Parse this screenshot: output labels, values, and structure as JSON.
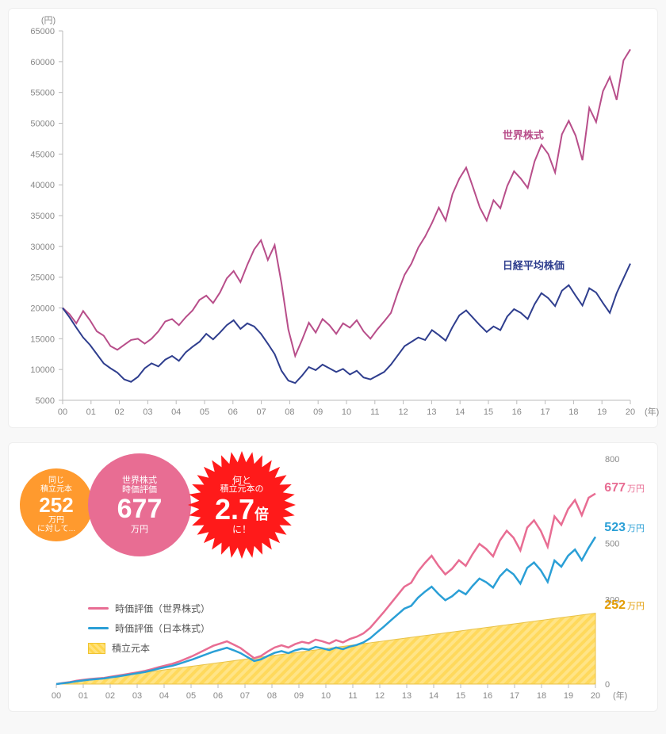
{
  "top_chart": {
    "type": "line",
    "y_unit": "(円)",
    "x_unit": "(年)",
    "ylim": [
      5000,
      65000
    ],
    "ytick_step": 5000,
    "x_ticks": [
      "00",
      "01",
      "02",
      "03",
      "04",
      "05",
      "06",
      "07",
      "08",
      "09",
      "10",
      "11",
      "12",
      "13",
      "14",
      "15",
      "16",
      "17",
      "18",
      "19",
      "20"
    ],
    "background_color": "#ffffff",
    "axis_color": "#bbbbbb",
    "tick_font_color": "#888888",
    "tick_fontsize": 11,
    "series": [
      {
        "name": "世界株式",
        "label": "世界株式",
        "color": "#b84e8a",
        "line_width": 2.2,
        "label_pos_year_index": 15.5,
        "label_pos_y": 47500,
        "values": [
          20000,
          19000,
          17500,
          19500,
          18000,
          16200,
          15500,
          13800,
          13200,
          14000,
          14800,
          15000,
          14200,
          15000,
          16200,
          17800,
          18200,
          17200,
          18500,
          19600,
          21300,
          22000,
          20800,
          22500,
          24800,
          26000,
          24200,
          27000,
          29500,
          31000,
          27800,
          30200,
          24000,
          16500,
          12200,
          14800,
          17600,
          16000,
          18200,
          17200,
          15800,
          17500,
          16800,
          18000,
          16200,
          15000,
          16500,
          17800,
          19200,
          22500,
          25400,
          27200,
          29800,
          31600,
          33800,
          36300,
          34200,
          38500,
          41000,
          42800,
          39600,
          36300,
          34200,
          37500,
          36200,
          39800,
          42200,
          41000,
          39500,
          43800,
          46500,
          45000,
          42000,
          48200,
          50400,
          48000,
          44000,
          52500,
          50200,
          55200,
          57500,
          53800,
          60200,
          62000
        ]
      },
      {
        "name": "日経平均株価",
        "label": "日経平均株価",
        "color": "#2f3e8e",
        "line_width": 2.2,
        "label_pos_year_index": 15.5,
        "label_pos_y": 26300,
        "values": [
          20000,
          18500,
          16800,
          15200,
          14000,
          12500,
          11000,
          10200,
          9500,
          8400,
          8000,
          8800,
          10200,
          11000,
          10500,
          11600,
          12200,
          11400,
          12800,
          13700,
          14500,
          15800,
          14900,
          16000,
          17200,
          18000,
          16600,
          17500,
          17000,
          15800,
          14200,
          12500,
          9800,
          8200,
          7800,
          9000,
          10400,
          9900,
          10800,
          10200,
          9600,
          10100,
          9200,
          9800,
          8700,
          8400,
          9000,
          9600,
          10800,
          12300,
          13800,
          14500,
          15200,
          14800,
          16400,
          15600,
          14700,
          16900,
          18800,
          19600,
          18400,
          17200,
          16100,
          17000,
          16400,
          18600,
          19800,
          19200,
          18200,
          20600,
          22400,
          21600,
          20300,
          22800,
          23700,
          22000,
          20400,
          23200,
          22500,
          20800,
          19200,
          22400,
          24800,
          27200
        ]
      }
    ]
  },
  "bottom_chart": {
    "type": "line_area",
    "x_unit": "(年)",
    "ylim": [
      0,
      800
    ],
    "yticks": [
      0,
      300,
      500,
      800
    ],
    "x_ticks": [
      "00",
      "01",
      "02",
      "03",
      "04",
      "05",
      "06",
      "07",
      "08",
      "09",
      "10",
      "11",
      "12",
      "13",
      "14",
      "15",
      "16",
      "17",
      "18",
      "19",
      "20"
    ],
    "axis_color": "#bbbbbb",
    "tick_font_color": "#888888",
    "area": {
      "name": "積立元本",
      "fill_color_a": "#ffe17a",
      "fill_color_b": "#ffd54a",
      "opacity": 0.9,
      "end_value": 252,
      "end_color": "#e29b00",
      "values": [
        0,
        3,
        6,
        9,
        12,
        15,
        18,
        21,
        24,
        27,
        30,
        33,
        36,
        39,
        42,
        45,
        48,
        51,
        54,
        57,
        60,
        63,
        66,
        69,
        72,
        75,
        78,
        81,
        84,
        87,
        90,
        93,
        96,
        99,
        102,
        105,
        108,
        111,
        114,
        117,
        120,
        123,
        126,
        129,
        132,
        135,
        138,
        141,
        144,
        147,
        150,
        153,
        156,
        159,
        162,
        165,
        168,
        171,
        174,
        177,
        180,
        183,
        186,
        189,
        192,
        195,
        198,
        201,
        204,
        207,
        210,
        213,
        216,
        219,
        222,
        225,
        228,
        231,
        234,
        237,
        240,
        243,
        246,
        249,
        252
      ]
    },
    "series": [
      {
        "name": "時価評価（世界株式）",
        "color": "#e86d93",
        "line_width": 2.2,
        "end_value": 677,
        "values": [
          0,
          4,
          7,
          12,
          15,
          18,
          20,
          22,
          26,
          30,
          34,
          38,
          42,
          47,
          53,
          60,
          66,
          72,
          80,
          90,
          100,
          112,
          124,
          136,
          144,
          152,
          140,
          128,
          110,
          92,
          100,
          116,
          130,
          138,
          130,
          142,
          150,
          145,
          158,
          152,
          144,
          156,
          148,
          160,
          168,
          180,
          200,
          228,
          256,
          286,
          316,
          346,
          360,
          400,
          430,
          456,
          420,
          390,
          410,
          440,
          420,
          462,
          498,
          480,
          454,
          510,
          545,
          520,
          475,
          556,
          582,
          544,
          488,
          596,
          566,
          622,
          654,
          600,
          662,
          677
        ]
      },
      {
        "name": "時価評価（日本株式）",
        "color": "#2a9fd6",
        "line_width": 2.2,
        "end_value": 523,
        "values": [
          0,
          3,
          6,
          10,
          13,
          16,
          18,
          20,
          24,
          27,
          31,
          35,
          39,
          43,
          49,
          55,
          60,
          65,
          72,
          80,
          88,
          97,
          106,
          115,
          122,
          129,
          120,
          110,
          96,
          82,
          88,
          100,
          111,
          117,
          110,
          120,
          126,
          122,
          132,
          127,
          121,
          130,
          124,
          133,
          139,
          148,
          163,
          184,
          204,
          226,
          247,
          268,
          278,
          307,
          328,
          346,
          320,
          298,
          312,
          333,
          319,
          349,
          375,
          362,
          343,
          383,
          408,
          390,
          357,
          413,
          432,
          404,
          363,
          439,
          417,
          456,
          478,
          440,
          484,
          523
        ]
      }
    ],
    "legend": {
      "items": [
        {
          "type": "line",
          "label": "時価評価（世界株式）",
          "color": "#e86d93"
        },
        {
          "type": "line",
          "label": "時価評価（日本株式）",
          "color": "#2a9fd6"
        },
        {
          "type": "patch",
          "label": "積立元本"
        }
      ]
    }
  },
  "badges": {
    "orange": {
      "pre": "同じ",
      "mid": "積立元本",
      "value": "252",
      "unit": "万円",
      "post": "に対して..."
    },
    "pink": {
      "pre": "世界株式",
      "mid": "時価評価",
      "value": "677",
      "unit": "万円"
    },
    "red": {
      "pre": "何と",
      "mid": "積立元本の",
      "value": "2.7",
      "unit": "倍",
      "post": "に！",
      "color": "#ff1a1a"
    }
  },
  "end_labels": {
    "world": {
      "value": "677",
      "unit": "万円",
      "color": "#e86d93"
    },
    "japan": {
      "value": "523",
      "unit": "万円",
      "color": "#2a9fd6"
    },
    "principal": {
      "value": "252",
      "unit": "万円",
      "color": "#e29b00"
    }
  }
}
